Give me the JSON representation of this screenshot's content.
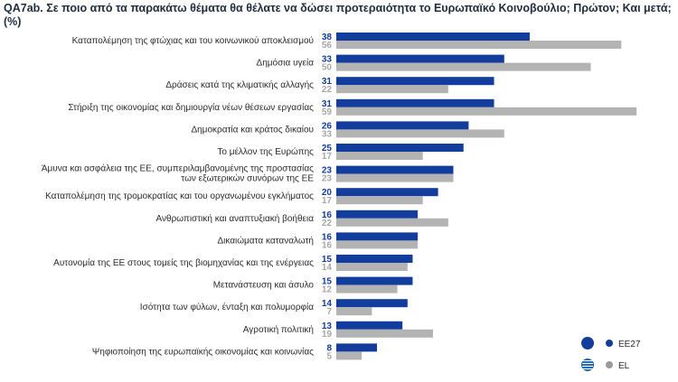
{
  "chart_data": {
    "type": "bar",
    "orientation": "horizontal",
    "title": "QA7ab. Σε ποιο από τα παρακάτω θέματα θα θέλατε να δώσει προτεραιότητα το Ευρωπαϊκό Κοινοβούλιο; Πρώτον; Και μετά; (%)",
    "categories": [
      [
        "Καταπολέμηση της φτώχιας και του κοινωνικού αποκλεισμού"
      ],
      [
        "Δημόσια υγεία"
      ],
      [
        "Δράσεις κατά της κλιματικής αλλαγής"
      ],
      [
        "Στήριξη της οικονομίας και δημιουργία νέων θέσεων εργασίας"
      ],
      [
        "Δημοκρατία και κράτος δικαίου"
      ],
      [
        "Το μέλλον της Ευρώπης"
      ],
      [
        "Άμυνα και ασφάλεια της ΕΕ, συμπεριλαμβανομένης της προστασίας",
        "των εξωτερικών συνόρων της ΕΕ"
      ],
      [
        "Καταπολέμηση της τρομοκρατίας και του οργανωμένου εγκλήματος"
      ],
      [
        "Ανθρωπιστική και αναπτυξιακή βοήθεια"
      ],
      [
        "Δικαιώματα καταναλωτή"
      ],
      [
        "Αυτονομία της ΕΕ στους τομείς της βιομηχανίας και της ενέργειας"
      ],
      [
        "Μετανάστευση και άσυλο"
      ],
      [
        "Ισότητα των φύλων, ένταξη και πολυμορφία"
      ],
      [
        "Αγροτική πολιτική"
      ],
      [
        "Ψηφιοποίηση της ευρωπαϊκής οικονομίας και κοινωνίας"
      ]
    ],
    "series": [
      {
        "name": "EE27",
        "color": "#123d9c",
        "values": [
          38,
          33,
          31,
          31,
          26,
          25,
          23,
          20,
          16,
          16,
          15,
          15,
          14,
          13,
          8
        ]
      },
      {
        "name": "EL",
        "color": "#b3b3b3",
        "values": [
          56,
          50,
          22,
          59,
          33,
          17,
          23,
          17,
          22,
          16,
          14,
          12,
          7,
          19,
          5
        ]
      }
    ],
    "xlim": [
      0,
      59
    ],
    "legend": {
      "position": "bottom-right"
    }
  }
}
